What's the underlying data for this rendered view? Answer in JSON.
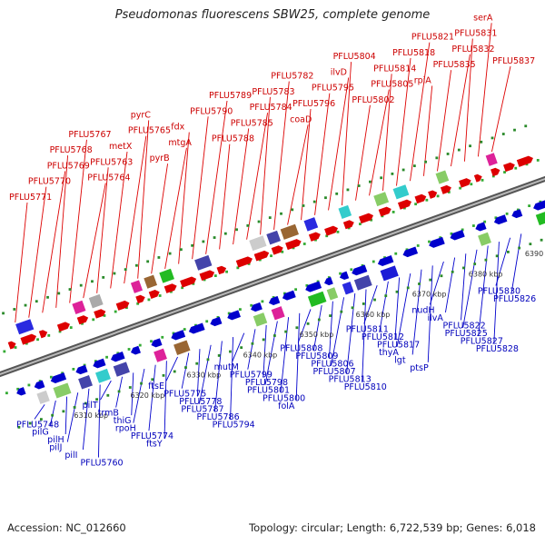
{
  "title": "Pseudomonas fluorescens SBW25, complete genome",
  "footer": {
    "accession": "Accession: NC_012660",
    "summary": "Topology: circular; Length: 6,722,539 bp; Genes: 6,018"
  },
  "colors": {
    "forward": "#dd0000",
    "reverse": "#0000cc",
    "backbone": "#888888",
    "tick": "#2a8a2a"
  },
  "ticks": [
    "6310 kbp",
    "6320 kbp",
    "6330 kbp",
    "6340 kbp",
    "6350 kbp",
    "6360 kbp",
    "6370 kbp",
    "6380 kbp",
    "6390 kbp"
  ],
  "top_labels": [
    "PFLU5771",
    "PFLU5770",
    "PFLU5769",
    "PFLU5768",
    "PFLU5767",
    "PFLU5764",
    "PFLU5763",
    "metX",
    "PFLU5765",
    "pyrC",
    "pyrB",
    "mtgA",
    "fdx",
    "PFLU5790",
    "PFLU5789",
    "PFLU5788",
    "PFLU5785",
    "PFLU5784",
    "PFLU5783",
    "PFLU5782",
    "coaD",
    "PFLU5796",
    "PFLU5795",
    "ilvD",
    "PFLU5804",
    "PFLU5802",
    "PFLU5805",
    "PFLU5814",
    "PFLU5818",
    "PFLU5821",
    "rpiA",
    "PFLU5835",
    "PFLU5832",
    "PFLU5831",
    "serA",
    "PFLU5837"
  ],
  "bottom_labels": [
    "PFLU5748",
    "pilG",
    "pilH",
    "pilJ",
    "pilI",
    "PFLU5760",
    "pilT",
    "trmB",
    "thiG",
    "rpoH",
    "PFLU5774",
    "ftsY",
    "ftsE",
    "PFLU5775",
    "PFLU5778",
    "PFLU5787",
    "PFLU5786",
    "PFLU5794",
    "mutM",
    "PFLU5799",
    "PFLU5798",
    "PFLU5801",
    "PFLU5800",
    "folA",
    "PFLU5808",
    "PFLU5809",
    "PFLU5806",
    "PFLU5807",
    "PFLU5813",
    "PFLU5810",
    "PFLU5811",
    "PFLU5812",
    "PFLU5817",
    "thyA",
    "lgt",
    "ptsP",
    "nudH",
    "ilvA",
    "PFLU5822",
    "PFLU5825",
    "PFLU5827",
    "PFLU5828",
    "PFLU5830",
    "PFLU5826"
  ]
}
